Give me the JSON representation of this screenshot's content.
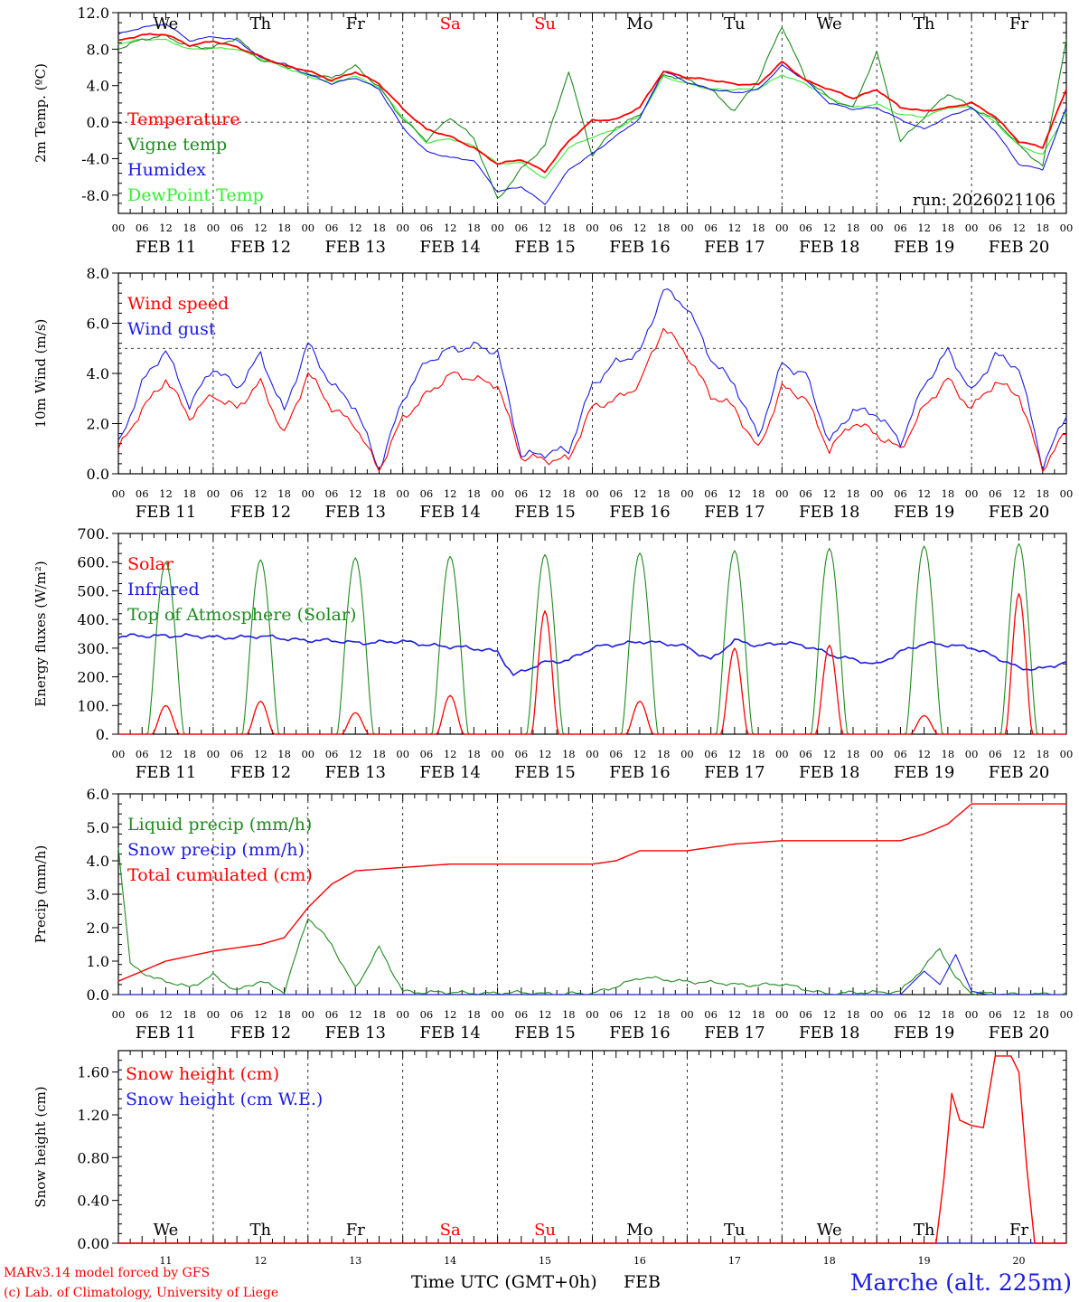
{
  "colors": {
    "red": "#ff0000",
    "green": "#1f8a1f",
    "lightgreen": "#33ee33",
    "blue": "#1a1ae6",
    "weekend": "#ff0000"
  },
  "days": [
    "We",
    "Th",
    "Fr",
    "Sa",
    "Su",
    "Mo",
    "Tu",
    "We",
    "Th",
    "Fr"
  ],
  "weekend_days": [
    "Sa",
    "Su"
  ],
  "dates": [
    "FEB 11",
    "FEB 12",
    "FEB 13",
    "FEB 14",
    "FEB 15",
    "FEB 16",
    "FEB 17",
    "FEB 18",
    "FEB 19",
    "FEB 20"
  ],
  "hour_ticks": [
    "00",
    "06",
    "12",
    "18"
  ],
  "last_hour_tick": "00",
  "day_numbers": [
    "11",
    "12",
    "13",
    "14",
    "15",
    "16",
    "17",
    "18",
    "19",
    "20"
  ],
  "run_label": "run: 2026021106",
  "footer": {
    "model": "MARv3.14 model forced by GFS",
    "copyright": "(c) Lab. of Climatology, University of Liege",
    "xlabel": "Time UTC (GMT+0h)",
    "month": "FEB",
    "station": "Marche (alt. 225m)"
  },
  "chart_data": [
    {
      "type": "line",
      "title": "Temperature",
      "ylabel": "2m Temp. (ºC)",
      "ylim": [
        -10,
        12
      ],
      "yticks": [
        "12.0",
        "8.0",
        "4.0",
        "0.0",
        "-4.0",
        "-8.0"
      ],
      "reference_line": 0,
      "x_unit": "hours since FEB 11 00 UTC",
      "series": [
        {
          "name": "Temperature",
          "color": "#ff0000",
          "x": [
            0,
            6,
            12,
            18,
            24,
            30,
            36,
            42,
            48,
            54,
            60,
            66,
            72,
            78,
            84,
            90,
            96,
            102,
            108,
            114,
            120,
            126,
            132,
            138,
            144,
            150,
            156,
            162,
            168,
            174,
            180,
            186,
            192,
            198,
            204,
            210,
            216,
            222,
            228,
            234,
            240
          ],
          "values": [
            8.9,
            9.6,
            9.6,
            8.4,
            8.9,
            8.2,
            7.2,
            6.2,
            5.6,
            4.6,
            5.5,
            4.2,
            1.5,
            -0.8,
            -1.6,
            -2.8,
            -4.6,
            -4.1,
            -5.4,
            -2.1,
            0.2,
            0.3,
            1.6,
            5.6,
            4.9,
            4.6,
            4.2,
            4.1,
            6.6,
            4.6,
            3.6,
            2.6,
            3.6,
            1.6,
            1.2,
            1.6,
            2.1,
            0.6,
            -2.1,
            -2.8,
            3.6
          ]
        },
        {
          "name": "Vigne temp",
          "color": "#1f8a1f",
          "x": [
            0,
            6,
            12,
            18,
            24,
            30,
            36,
            42,
            48,
            54,
            60,
            66,
            72,
            78,
            84,
            90,
            96,
            102,
            108,
            114,
            120,
            126,
            132,
            138,
            144,
            150,
            156,
            162,
            168,
            174,
            180,
            186,
            192,
            198,
            204,
            210,
            216,
            222,
            228,
            234,
            240
          ],
          "values": [
            8.1,
            9.0,
            9.5,
            8.3,
            8.1,
            9.3,
            6.8,
            6.2,
            5.4,
            4.8,
            6.1,
            3.9,
            0.3,
            -2.0,
            0.6,
            -1.8,
            -8.5,
            -5.1,
            -2.6,
            5.6,
            -3.6,
            -0.6,
            0.8,
            5.2,
            4.6,
            3.6,
            1.2,
            4.6,
            10.6,
            4.8,
            2.6,
            1.6,
            7.6,
            -2.1,
            0.6,
            3.1,
            1.6,
            0.3,
            -2.6,
            -4.8,
            9.1
          ]
        },
        {
          "name": "Humidex",
          "color": "#1a1ae6",
          "x": [
            0,
            6,
            12,
            18,
            24,
            30,
            36,
            42,
            48,
            54,
            60,
            66,
            72,
            78,
            84,
            90,
            96,
            102,
            108,
            114,
            120,
            126,
            132,
            138,
            144,
            150,
            156,
            162,
            168,
            174,
            180,
            186,
            192,
            198,
            204,
            210,
            216,
            222,
            228,
            234,
            240
          ],
          "values": [
            9.6,
            10.4,
            10.8,
            8.9,
            9.4,
            9.0,
            7.0,
            6.4,
            5.2,
            4.2,
            4.9,
            3.6,
            -0.6,
            -3.2,
            -3.9,
            -4.2,
            -7.6,
            -7.1,
            -9.0,
            -5.2,
            -3.5,
            -1.5,
            0.4,
            5.6,
            4.4,
            3.6,
            3.2,
            3.6,
            6.2,
            4.6,
            2.1,
            1.4,
            1.6,
            0.3,
            -0.8,
            0.6,
            1.6,
            -1.0,
            -4.6,
            -5.2,
            1.6
          ]
        },
        {
          "name": "DewPoint Temp",
          "color": "#33ee33",
          "x": [
            0,
            6,
            12,
            18,
            24,
            30,
            36,
            42,
            48,
            54,
            60,
            66,
            72,
            78,
            84,
            90,
            96,
            102,
            108,
            114,
            120,
            126,
            132,
            138,
            144,
            150,
            156,
            162,
            168,
            174,
            180,
            186,
            192,
            198,
            204,
            210,
            216,
            222,
            228,
            234,
            240
          ],
          "values": [
            8.6,
            9.1,
            9.0,
            8.0,
            8.1,
            8.0,
            7.0,
            6.0,
            5.0,
            4.4,
            5.0,
            3.8,
            0.6,
            -2.3,
            -1.8,
            -2.6,
            -4.6,
            -4.4,
            -6.2,
            -2.8,
            -1.6,
            -0.8,
            0.6,
            5.0,
            4.2,
            3.6,
            3.6,
            3.6,
            5.2,
            4.2,
            2.6,
            1.6,
            2.0,
            0.8,
            0.6,
            1.6,
            1.6,
            0.0,
            -2.6,
            -3.6,
            1.1
          ]
        }
      ]
    },
    {
      "type": "line",
      "title": "Wind",
      "ylabel": "10m Wind (m/s)",
      "ylim": [
        0,
        8
      ],
      "yticks": [
        "8.0",
        "6.0",
        "4.0",
        "2.0",
        "0.0"
      ],
      "reference_line": 5,
      "series": [
        {
          "name": "Wind speed",
          "color": "#ff0000",
          "x": [
            0,
            6,
            12,
            18,
            24,
            30,
            36,
            42,
            48,
            54,
            60,
            66,
            72,
            78,
            84,
            90,
            96,
            102,
            108,
            114,
            120,
            126,
            132,
            138,
            144,
            150,
            156,
            162,
            168,
            174,
            180,
            186,
            192,
            198,
            204,
            210,
            216,
            222,
            228,
            234,
            240
          ],
          "values": [
            0.9,
            2.6,
            3.8,
            2.2,
            3.2,
            2.6,
            3.6,
            1.6,
            4.0,
            2.6,
            2.0,
            0.1,
            2.2,
            3.2,
            3.9,
            3.8,
            3.6,
            0.6,
            0.6,
            0.6,
            2.6,
            3.0,
            3.6,
            5.8,
            4.8,
            3.1,
            2.6,
            1.0,
            3.4,
            3.0,
            1.0,
            2.0,
            1.6,
            1.0,
            2.6,
            3.8,
            2.6,
            3.6,
            3.2,
            0.2,
            1.6
          ]
        },
        {
          "name": "Wind gust",
          "color": "#1a1ae6",
          "x": [
            0,
            6,
            12,
            18,
            24,
            30,
            36,
            42,
            48,
            54,
            60,
            66,
            72,
            78,
            84,
            90,
            96,
            102,
            108,
            114,
            120,
            126,
            132,
            138,
            144,
            150,
            156,
            162,
            168,
            174,
            180,
            186,
            192,
            198,
            204,
            210,
            216,
            222,
            228,
            234,
            240
          ],
          "values": [
            1.2,
            3.6,
            4.9,
            2.8,
            4.2,
            3.4,
            4.8,
            2.4,
            5.2,
            3.6,
            2.6,
            0.2,
            3.0,
            4.4,
            5.0,
            5.1,
            4.8,
            0.8,
            0.8,
            0.9,
            3.6,
            4.4,
            4.8,
            7.4,
            6.6,
            4.6,
            3.6,
            1.4,
            4.4,
            4.0,
            1.2,
            2.6,
            2.4,
            1.2,
            3.6,
            4.9,
            3.2,
            4.8,
            4.2,
            0.3,
            2.4
          ]
        }
      ]
    },
    {
      "type": "line",
      "title": "Energy fluxes",
      "ylabel": "Energy fluxes (W/m²)",
      "ylim": [
        0,
        700
      ],
      "yticks": [
        "700.",
        "600.",
        "500.",
        "400.",
        "300.",
        "200.",
        "100.",
        "0."
      ],
      "series": [
        {
          "name": "Solar",
          "color": "#ff0000",
          "peaks_hour": [
            12,
            36,
            60,
            84,
            108,
            132,
            156,
            180,
            204,
            228
          ],
          "peak_values": [
            100,
            115,
            75,
            135,
            430,
            115,
            300,
            310,
            65,
            490
          ]
        },
        {
          "name": "Infrared",
          "color": "#1a1ae6",
          "x": [
            0,
            12,
            24,
            36,
            48,
            60,
            72,
            84,
            96,
            100,
            108,
            114,
            120,
            132,
            144,
            150,
            156,
            162,
            168,
            176,
            180,
            186,
            192,
            198,
            204,
            216,
            228,
            234,
            240
          ],
          "values": [
            340,
            345,
            338,
            340,
            328,
            320,
            322,
            305,
            290,
            205,
            250,
            260,
            300,
            325,
            305,
            260,
            325,
            310,
            320,
            300,
            280,
            260,
            240,
            290,
            315,
            305,
            230,
            230,
            250
          ]
        },
        {
          "name": "Top of Atmosphere (Solar)",
          "color": "#1f8a1f",
          "peaks_hour": [
            12,
            36,
            60,
            84,
            108,
            132,
            156,
            180,
            204,
            228
          ],
          "peak_values": [
            600,
            608,
            615,
            620,
            626,
            632,
            640,
            648,
            656,
            664
          ]
        }
      ]
    },
    {
      "type": "line",
      "title": "Precipitation",
      "ylabel": "Precip (mm/h)",
      "ylim": [
        0,
        6
      ],
      "yticks": [
        "6.0",
        "5.0",
        "4.0",
        "3.0",
        "2.0",
        "1.0",
        "0.0"
      ],
      "series": [
        {
          "name": "Liquid precip (mm/h)",
          "color": "#1f8a1f",
          "x": [
            0,
            3,
            9,
            18,
            24,
            30,
            36,
            42,
            48,
            54,
            60,
            66,
            72,
            84,
            96,
            120,
            132,
            144,
            156,
            168,
            180,
            198,
            204,
            208,
            212,
            216,
            220,
            224,
            240
          ],
          "values": [
            4.4,
            0.9,
            0.5,
            0.2,
            0.6,
            0.1,
            0.4,
            0.1,
            2.3,
            1.5,
            0.2,
            1.4,
            0.1,
            0.05,
            0.05,
            0.02,
            0.5,
            0.4,
            0.3,
            0.3,
            0.02,
            0.1,
            0.8,
            1.4,
            0.5,
            0.05,
            0.02,
            0.02,
            0.0
          ]
        },
        {
          "name": "Snow precip (mm/h)",
          "color": "#1a1ae6",
          "x": [
            0,
            198,
            204,
            208,
            212,
            216,
            220,
            240
          ],
          "values": [
            0,
            0,
            0.7,
            0.3,
            1.2,
            0.1,
            0,
            0
          ]
        },
        {
          "name": "Total cumulated (cm)",
          "color": "#ff0000",
          "x": [
            0,
            12,
            24,
            36,
            42,
            48,
            54,
            60,
            72,
            84,
            96,
            108,
            120,
            126,
            132,
            144,
            156,
            168,
            180,
            192,
            198,
            204,
            210,
            216,
            228,
            240
          ],
          "values": [
            0.4,
            1.0,
            1.3,
            1.5,
            1.7,
            2.6,
            3.3,
            3.7,
            3.8,
            3.9,
            3.9,
            3.9,
            3.9,
            4.0,
            4.3,
            4.3,
            4.5,
            4.6,
            4.6,
            4.6,
            4.6,
            4.8,
            5.1,
            5.7,
            5.7,
            5.7
          ]
        }
      ]
    },
    {
      "type": "line",
      "title": "Snow height",
      "ylabel": "Snow height (cm)",
      "ylim": [
        0,
        1.8
      ],
      "yticks": [
        "1.60",
        "1.20",
        "0.80",
        "0.40",
        "0.00"
      ],
      "series": [
        {
          "name": "Snow height (cm)",
          "color": "#ff0000",
          "x": [
            0,
            207,
            209,
            211,
            213,
            216,
            219,
            222,
            224,
            226,
            228,
            230,
            232,
            234,
            240
          ],
          "values": [
            0,
            0,
            0.6,
            1.4,
            1.15,
            1.1,
            1.08,
            1.75,
            1.75,
            1.75,
            1.6,
            0.7,
            0,
            0,
            0
          ]
        },
        {
          "name": "Snow height (cm W.E.)",
          "color": "#1a1ae6",
          "x": [
            0,
            240
          ],
          "values": [
            0,
            0
          ]
        }
      ]
    }
  ]
}
